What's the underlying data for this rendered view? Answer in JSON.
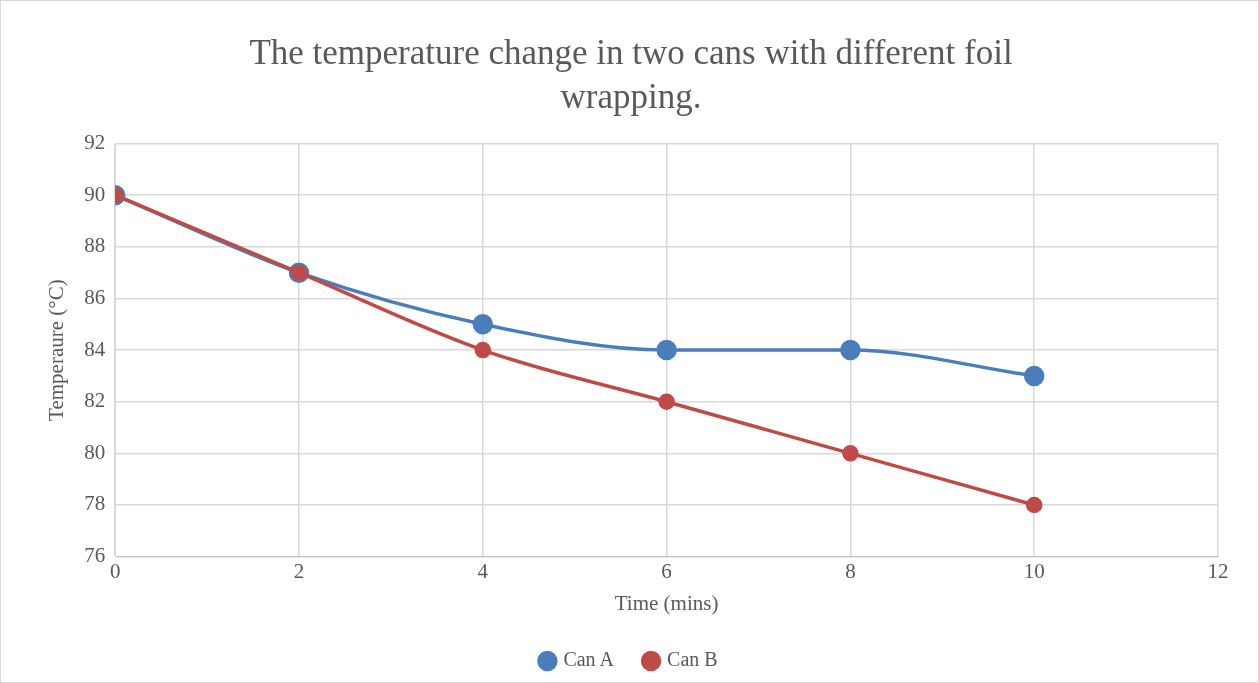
{
  "chart_data": {
    "type": "line",
    "title": "The temperature change in two cans with different foil wrapping.",
    "xlabel": "Time (mins)",
    "ylabel": "Temperaure (°C)",
    "x": [
      0,
      2,
      4,
      6,
      8,
      10
    ],
    "series": [
      {
        "name": "Can A",
        "color": "#4a7ebb",
        "values": [
          90,
          87,
          85,
          84,
          84,
          83
        ]
      },
      {
        "name": "Can B",
        "color": "#be4b48",
        "values": [
          90,
          87,
          84,
          82,
          80,
          78
        ]
      }
    ],
    "xlim": [
      0,
      12
    ],
    "xticks": [
      0,
      2,
      4,
      6,
      8,
      10,
      12
    ],
    "ylim": [
      76,
      92
    ],
    "yticks": [
      76,
      78,
      80,
      82,
      84,
      86,
      88,
      90,
      92
    ],
    "grid": true,
    "legend": "bottom",
    "marker": "circle",
    "line_style": "solid"
  }
}
